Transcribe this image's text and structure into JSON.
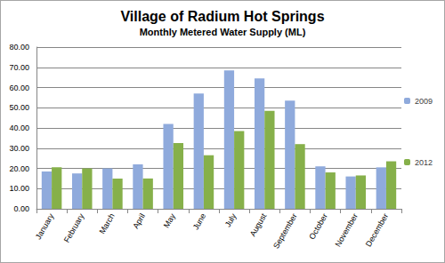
{
  "chart_data": {
    "type": "bar",
    "title": "Village of Radium Hot Springs",
    "subtitle": "Monthly Metered Water Supply (ML)",
    "categories": [
      "January",
      "February",
      "March",
      "April",
      "May",
      "June",
      "July",
      "August",
      "September",
      "October",
      "November",
      "December"
    ],
    "series": [
      {
        "name": "2009",
        "color": "#8faadc",
        "values": [
          18.5,
          17.5,
          20,
          22,
          42,
          57,
          68.5,
          64.5,
          53.5,
          21,
          16,
          20.5
        ]
      },
      {
        "name": "2012",
        "color": "#86b04a",
        "values": [
          20.5,
          20,
          15,
          15,
          32.5,
          26.5,
          38.5,
          48.5,
          32,
          18,
          16.5,
          23.5
        ]
      }
    ],
    "ylim": [
      0,
      80
    ],
    "yticks": [
      {
        "value": 0,
        "label": "0.00"
      },
      {
        "value": 10,
        "label": "10.00"
      },
      {
        "value": 20,
        "label": "20.00"
      },
      {
        "value": 30,
        "label": "30.00"
      },
      {
        "value": 40,
        "label": "40.00"
      },
      {
        "value": 50,
        "label": "50.00"
      },
      {
        "value": 60,
        "label": "60.00"
      },
      {
        "value": 70,
        "label": "70.00"
      },
      {
        "value": 80,
        "label": "80.00"
      }
    ],
    "grid": true,
    "legend": "right"
  }
}
